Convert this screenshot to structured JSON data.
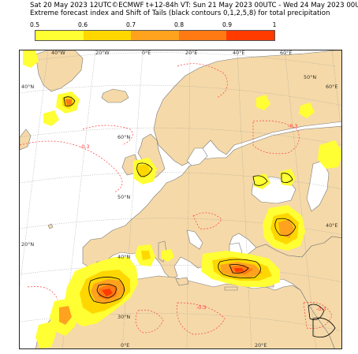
{
  "header": {
    "line1": "Sat 20 May 2023 12UTC©ECMWF t+12-84h  VT: Sun 21 May 2023 00UTC - Wed 24 May 2023 00UTC",
    "line2": "Extreme forecast index and Shift of Tails (black contours 0,1,2,5,8) for total precipitation"
  },
  "colorbar": {
    "ticks": [
      "0.5",
      "0.6",
      "0.7",
      "0.8",
      "0.9",
      "1"
    ],
    "colors": [
      "#ffff33",
      "#ffd700",
      "#ffa21e",
      "#ff7a12",
      "#ff3b00",
      "#e60000"
    ]
  },
  "map": {
    "colors": {
      "sea": "#ffffff",
      "land": "#f5d9a8",
      "coast": "#7a7a7a",
      "grid": "#9a9a9a",
      "sot_contour": "#000000",
      "neg_contour": "#ff3b3b"
    },
    "top_lon_labels": [
      "40°W",
      "20°W",
      "0°E",
      "20°E",
      "40°E",
      "60°E"
    ],
    "left_lat_labels": [
      "40°N",
      "20°N"
    ],
    "interior_lat_labels": [
      "60°N",
      "50°N",
      "40°N",
      "30°N"
    ],
    "right_lat_labels": [
      "60°E",
      "40°E"
    ],
    "right_lon_label": "50°N",
    "bottom_lon_labels": [
      "0°E",
      "20°E"
    ],
    "neg_contour_labels": [
      "-0.3",
      "-0.3",
      "-0.3",
      "-0.3"
    ]
  }
}
